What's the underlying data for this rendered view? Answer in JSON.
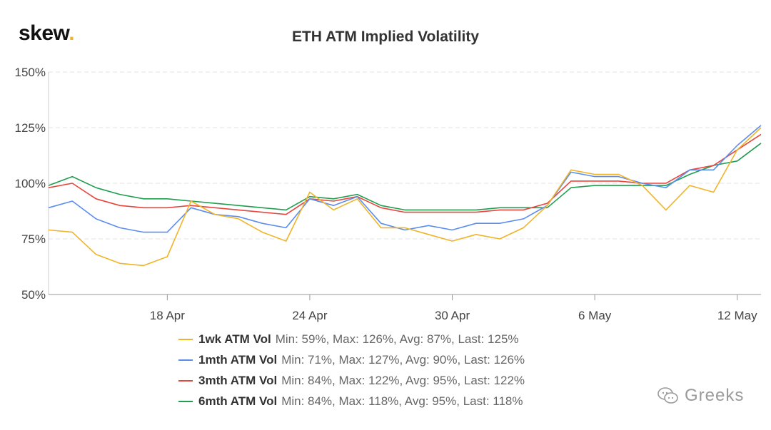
{
  "brand": {
    "name": "skew",
    "dot": "."
  },
  "chart_data": {
    "type": "line",
    "title": "ETH ATM Implied Volatility",
    "xlabel": "",
    "ylabel": "",
    "x_range": [
      "2020-04-13",
      "2020-05-13"
    ],
    "x_ticks": [
      {
        "date": "2020-04-18",
        "label": "18 Apr"
      },
      {
        "date": "2020-04-24",
        "label": "24 Apr"
      },
      {
        "date": "2020-04-30",
        "label": "30 Apr"
      },
      {
        "date": "2020-05-06",
        "label": "6 May"
      },
      {
        "date": "2020-05-12",
        "label": "12 May"
      }
    ],
    "ylim": [
      50,
      150
    ],
    "y_ticks": [
      50,
      75,
      100,
      125,
      150
    ],
    "y_tick_suffix": "%",
    "grid": "horizontal dashed",
    "legend_position": "bottom",
    "x": [
      "2020-04-13",
      "2020-04-14",
      "2020-04-15",
      "2020-04-16",
      "2020-04-17",
      "2020-04-18",
      "2020-04-19",
      "2020-04-20",
      "2020-04-21",
      "2020-04-22",
      "2020-04-23",
      "2020-04-24",
      "2020-04-25",
      "2020-04-26",
      "2020-04-27",
      "2020-04-28",
      "2020-04-29",
      "2020-04-30",
      "2020-05-01",
      "2020-05-02",
      "2020-05-03",
      "2020-05-04",
      "2020-05-05",
      "2020-05-06",
      "2020-05-07",
      "2020-05-08",
      "2020-05-09",
      "2020-05-10",
      "2020-05-11",
      "2020-05-12",
      "2020-05-13"
    ],
    "series": [
      {
        "name": "1wk ATM Vol",
        "stats": "Min: 59%, Max: 126%, Avg: 87%, Last: 125%",
        "color": "#f0b429",
        "values": [
          79,
          78,
          68,
          64,
          63,
          67,
          92,
          86,
          84,
          78,
          74,
          96,
          88,
          93,
          80,
          80,
          77,
          74,
          77,
          75,
          80,
          90,
          106,
          104,
          104,
          99,
          88,
          99,
          96,
          115,
          125
        ]
      },
      {
        "name": "1mth ATM Vol",
        "stats": "Min: 71%, Max: 127%, Avg: 90%, Last: 126%",
        "color": "#5b8def",
        "values": [
          89,
          92,
          84,
          80,
          78,
          78,
          89,
          86,
          85,
          82,
          80,
          93,
          90,
          94,
          82,
          79,
          81,
          79,
          82,
          82,
          84,
          90,
          105,
          103,
          103,
          100,
          98,
          106,
          106,
          117,
          126
        ]
      },
      {
        "name": "3mth ATM Vol",
        "stats": "Min: 84%, Max: 122%, Avg: 95%, Last: 122%",
        "color": "#e8453c",
        "values": [
          98,
          100,
          93,
          90,
          89,
          89,
          90,
          89,
          88,
          87,
          86,
          93,
          92,
          94,
          89,
          87,
          87,
          87,
          87,
          88,
          88,
          91,
          101,
          101,
          101,
          100,
          100,
          106,
          108,
          115,
          122
        ]
      },
      {
        "name": "6mth ATM Vol",
        "stats": "Min: 84%, Max: 118%, Avg: 95%, Last: 118%",
        "color": "#1f9e4f",
        "values": [
          99,
          103,
          98,
          95,
          93,
          93,
          92,
          91,
          90,
          89,
          88,
          94,
          93,
          95,
          90,
          88,
          88,
          88,
          88,
          89,
          89,
          89,
          98,
          99,
          99,
          99,
          99,
          104,
          108,
          110,
          118
        ]
      }
    ]
  },
  "watermark": {
    "text": "Greeks"
  }
}
